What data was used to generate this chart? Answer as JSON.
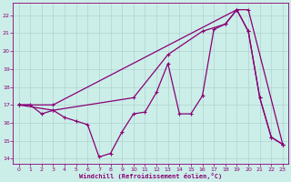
{
  "xlabel": "Windchill (Refroidissement éolien,°C)",
  "bg_color": "#cceee8",
  "line_color": "#880077",
  "grid_color": "#aacccc",
  "xlim": [
    -0.5,
    23.5
  ],
  "ylim": [
    13.7,
    22.7
  ],
  "yticks": [
    14,
    15,
    16,
    17,
    18,
    19,
    20,
    21,
    22
  ],
  "xticks": [
    0,
    1,
    2,
    3,
    4,
    5,
    6,
    7,
    8,
    9,
    10,
    11,
    12,
    13,
    14,
    15,
    16,
    17,
    18,
    19,
    20,
    21,
    22,
    23
  ],
  "line1_x": [
    0,
    1,
    2,
    3,
    4,
    5,
    6,
    7,
    8,
    9,
    10,
    11,
    12,
    13,
    14,
    15,
    16,
    17,
    18,
    19,
    20,
    21,
    22,
    23
  ],
  "line1_y": [
    17.0,
    17.0,
    16.5,
    16.7,
    16.3,
    16.1,
    15.9,
    14.1,
    14.3,
    15.5,
    16.5,
    16.6,
    17.7,
    19.3,
    16.5,
    16.5,
    17.5,
    21.2,
    21.5,
    22.3,
    21.1,
    17.4,
    15.2,
    14.8
  ],
  "line2_x": [
    0,
    3,
    19,
    20,
    23
  ],
  "line2_y": [
    17.0,
    17.0,
    22.3,
    22.3,
    14.8
  ],
  "line3_x": [
    0,
    3,
    10,
    13,
    16,
    18,
    19,
    20,
    21,
    22,
    23
  ],
  "line3_y": [
    17.0,
    16.7,
    17.4,
    19.8,
    21.1,
    21.5,
    22.3,
    21.1,
    17.4,
    15.2,
    14.8
  ]
}
